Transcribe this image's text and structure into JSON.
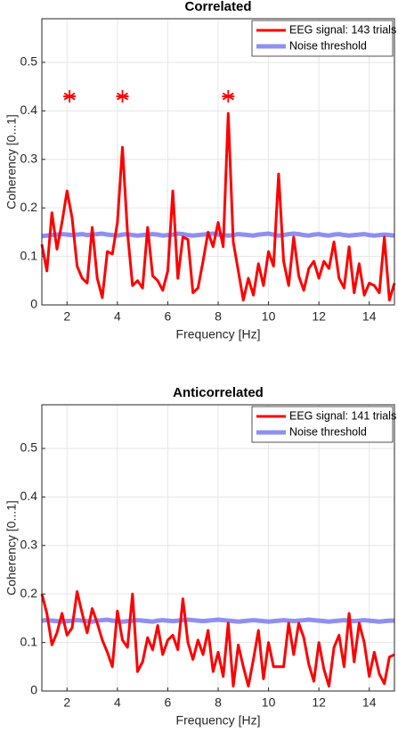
{
  "chart_data": [
    {
      "type": "line",
      "title": "Correlated",
      "xlabel": "Frequency [Hz]",
      "ylabel": "Coherency [0...1]",
      "x": [
        1,
        1.2,
        1.4,
        1.6,
        1.8,
        2,
        2.2,
        2.4,
        2.6,
        2.8,
        3,
        3.2,
        3.4,
        3.6,
        3.8,
        4,
        4.2,
        4.4,
        4.6,
        4.8,
        5,
        5.2,
        5.4,
        5.6,
        5.8,
        6,
        6.2,
        6.4,
        6.6,
        6.8,
        7,
        7.2,
        7.4,
        7.6,
        7.8,
        8,
        8.2,
        8.4,
        8.6,
        8.8,
        9,
        9.2,
        9.4,
        9.6,
        9.8,
        10,
        10.2,
        10.4,
        10.6,
        10.8,
        11,
        11.2,
        11.4,
        11.6,
        11.8,
        12,
        12.2,
        12.4,
        12.6,
        12.8,
        13,
        13.2,
        13.4,
        13.6,
        13.8,
        14,
        14.2,
        14.4,
        14.6,
        14.8,
        15
      ],
      "series": [
        {
          "name": "EEG signal: 143 trials",
          "color": "#ff0000",
          "values": [
            0.125,
            0.07,
            0.19,
            0.115,
            0.17,
            0.235,
            0.18,
            0.08,
            0.055,
            0.045,
            0.16,
            0.055,
            0.015,
            0.11,
            0.105,
            0.17,
            0.325,
            0.15,
            0.04,
            0.05,
            0.035,
            0.16,
            0.06,
            0.05,
            0.03,
            0.07,
            0.235,
            0.055,
            0.14,
            0.135,
            0.025,
            0.035,
            0.09,
            0.15,
            0.12,
            0.17,
            0.12,
            0.395,
            0.13,
            0.07,
            0.01,
            0.055,
            0.02,
            0.085,
            0.04,
            0.11,
            0.08,
            0.27,
            0.09,
            0.04,
            0.14,
            0.06,
            0.03,
            0.075,
            0.09,
            0.055,
            0.09,
            0.075,
            0.13,
            0.055,
            0.035,
            0.12,
            0.025,
            0.085,
            0.02,
            0.045,
            0.04,
            0.025,
            0.14,
            0.01,
            0.045
          ]
        },
        {
          "name": "Noise threshold",
          "color": "#7b7bf0",
          "values": [
            0.142,
            0.143,
            0.144,
            0.145,
            0.146,
            0.145,
            0.144,
            0.145,
            0.146,
            0.144,
            0.145,
            0.146,
            0.147,
            0.145,
            0.144,
            0.143,
            0.145,
            0.146,
            0.144,
            0.143,
            0.144,
            0.145,
            0.146,
            0.145,
            0.143,
            0.144,
            0.145,
            0.147,
            0.146,
            0.144,
            0.143,
            0.144,
            0.145,
            0.146,
            0.147,
            0.145,
            0.144,
            0.143,
            0.144,
            0.146,
            0.145,
            0.144,
            0.143,
            0.145,
            0.146,
            0.147,
            0.145,
            0.143,
            0.144,
            0.146,
            0.147,
            0.146,
            0.144,
            0.143,
            0.145,
            0.146,
            0.144,
            0.143,
            0.145,
            0.146,
            0.144,
            0.143,
            0.144,
            0.145,
            0.146,
            0.144,
            0.143,
            0.144,
            0.145,
            0.144,
            0.143
          ]
        }
      ],
      "markers": {
        "color": "#ff0000",
        "x": [
          2.1,
          4.2,
          8.4
        ],
        "y": [
          0.43,
          0.43,
          0.43
        ]
      },
      "xlim": [
        1,
        15
      ],
      "ylim": [
        0,
        0.59
      ],
      "xticks": [
        2,
        4,
        6,
        8,
        10,
        12,
        14
      ],
      "yticks": [
        0,
        0.1,
        0.2,
        0.3,
        0.4,
        0.5
      ],
      "grid": true,
      "legend": "upper right"
    },
    {
      "type": "line",
      "title": "Anticorrelated",
      "xlabel": "Frequency [Hz]",
      "ylabel": "Coherency [0...1]",
      "x": [
        1,
        1.2,
        1.4,
        1.6,
        1.8,
        2,
        2.2,
        2.4,
        2.6,
        2.8,
        3,
        3.2,
        3.4,
        3.6,
        3.8,
        4,
        4.2,
        4.4,
        4.6,
        4.8,
        5,
        5.2,
        5.4,
        5.6,
        5.8,
        6,
        6.2,
        6.4,
        6.6,
        6.8,
        7,
        7.2,
        7.4,
        7.6,
        7.8,
        8,
        8.2,
        8.4,
        8.6,
        8.8,
        9,
        9.2,
        9.4,
        9.6,
        9.8,
        10,
        10.2,
        10.4,
        10.6,
        10.8,
        11,
        11.2,
        11.4,
        11.6,
        11.8,
        12,
        12.2,
        12.4,
        12.6,
        12.8,
        13,
        13.2,
        13.4,
        13.6,
        13.8,
        14,
        14.2,
        14.4,
        14.6,
        14.8,
        15
      ],
      "series": [
        {
          "name": "EEG signal: 141 trials",
          "color": "#ff0000",
          "values": [
            0.2,
            0.16,
            0.095,
            0.12,
            0.16,
            0.115,
            0.13,
            0.205,
            0.16,
            0.12,
            0.17,
            0.14,
            0.105,
            0.08,
            0.05,
            0.165,
            0.105,
            0.09,
            0.2,
            0.04,
            0.06,
            0.11,
            0.085,
            0.135,
            0.075,
            0.105,
            0.115,
            0.085,
            0.19,
            0.1,
            0.065,
            0.105,
            0.075,
            0.125,
            0.04,
            0.08,
            0.03,
            0.14,
            0.01,
            0.095,
            0.05,
            0.01,
            0.065,
            0.125,
            0.025,
            0.1,
            0.05,
            0.05,
            0.05,
            0.14,
            0.075,
            0.14,
            0.11,
            0.055,
            0.02,
            0.1,
            0.045,
            0.01,
            0.09,
            0.115,
            0.05,
            0.16,
            0.06,
            0.14,
            0.1,
            0.03,
            0.08,
            0.035,
            0.015,
            0.07,
            0.075
          ]
        },
        {
          "name": "Noise threshold",
          "color": "#7b7bf0",
          "values": [
            0.145,
            0.146,
            0.145,
            0.144,
            0.143,
            0.144,
            0.145,
            0.146,
            0.145,
            0.144,
            0.143,
            0.145,
            0.146,
            0.147,
            0.145,
            0.144,
            0.143,
            0.144,
            0.145,
            0.146,
            0.145,
            0.144,
            0.143,
            0.145,
            0.146,
            0.145,
            0.144,
            0.145,
            0.146,
            0.147,
            0.146,
            0.145,
            0.144,
            0.145,
            0.146,
            0.147,
            0.146,
            0.145,
            0.144,
            0.143,
            0.144,
            0.145,
            0.146,
            0.145,
            0.144,
            0.143,
            0.144,
            0.145,
            0.146,
            0.145,
            0.144,
            0.145,
            0.146,
            0.147,
            0.146,
            0.145,
            0.144,
            0.143,
            0.144,
            0.145,
            0.146,
            0.145,
            0.144,
            0.145,
            0.146,
            0.145,
            0.144,
            0.143,
            0.144,
            0.145,
            0.145
          ]
        }
      ],
      "xlim": [
        1,
        15
      ],
      "ylim": [
        0,
        0.59
      ],
      "xticks": [
        2,
        4,
        6,
        8,
        10,
        12,
        14
      ],
      "yticks": [
        0,
        0.1,
        0.2,
        0.3,
        0.4,
        0.5
      ],
      "grid": true,
      "legend": "upper right"
    }
  ]
}
